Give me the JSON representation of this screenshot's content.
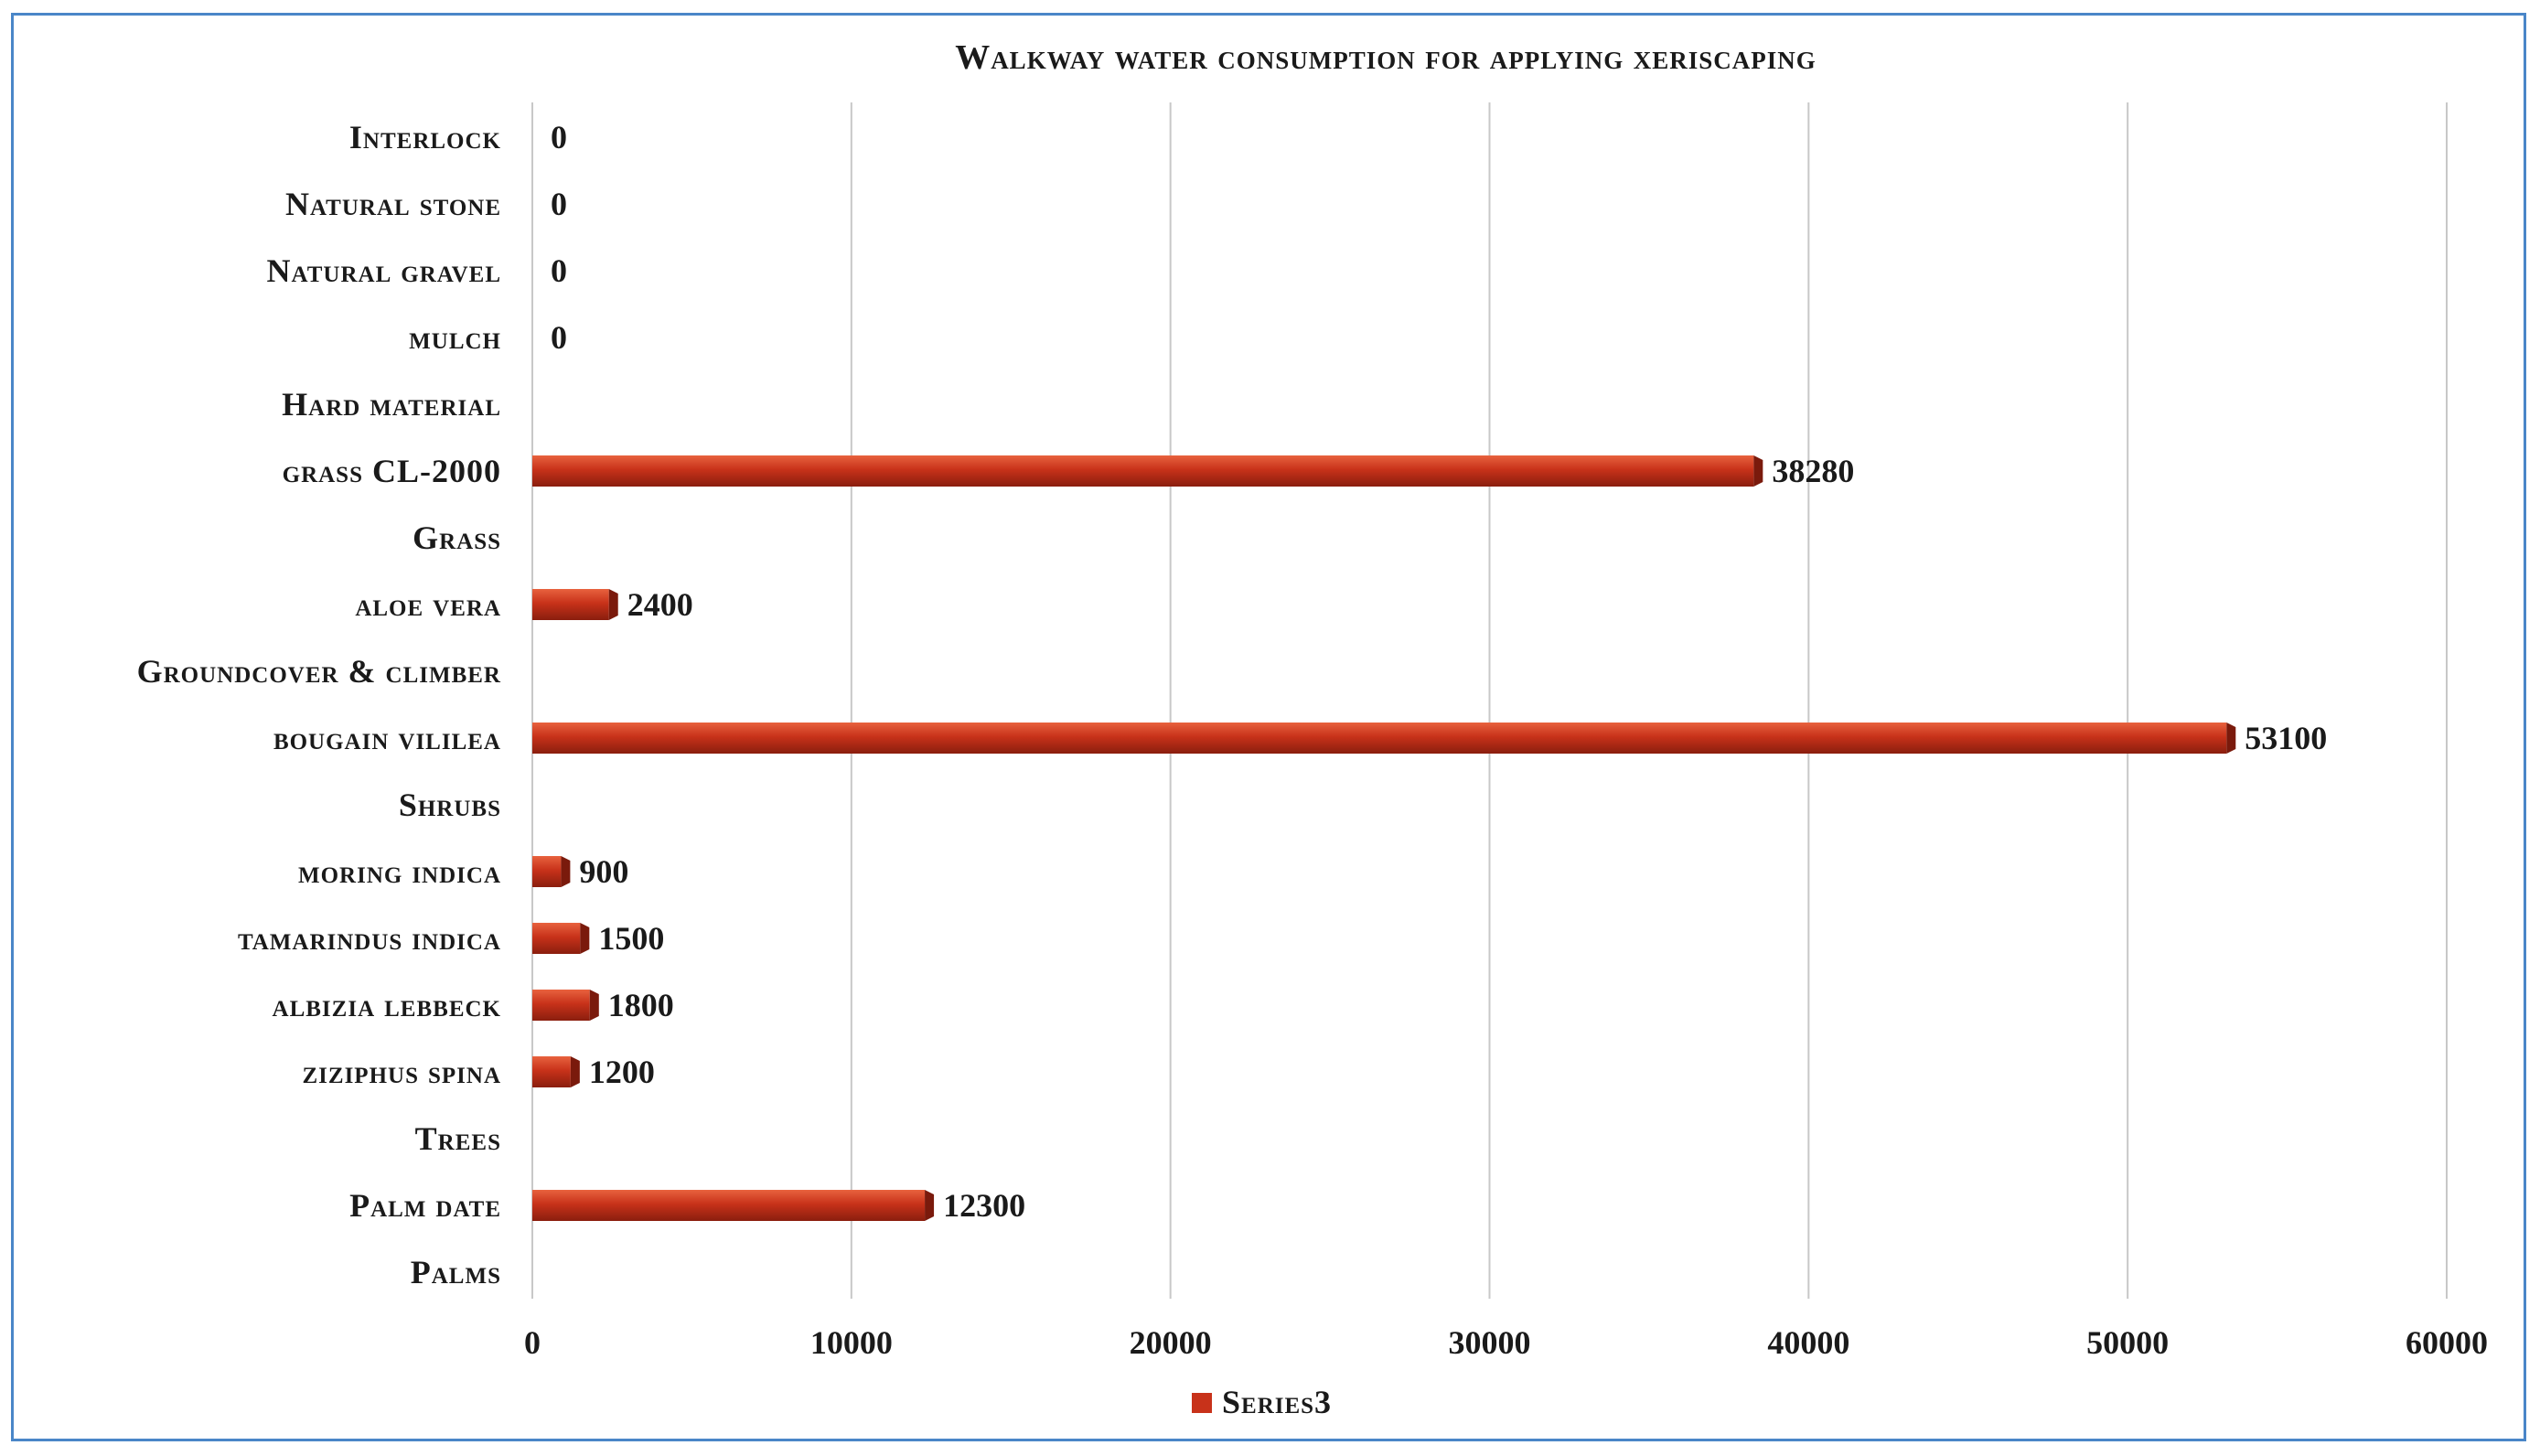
{
  "chart_data": {
    "type": "bar",
    "orientation": "horizontal",
    "title": "Walkway water consumption for applying xeriscaping",
    "categories": [
      "Interlock",
      "Natural stone",
      "Natural gravel",
      "mulch",
      "Hard material",
      "grass CL-2000",
      "Grass",
      "aloe vera",
      "Groundcover & climber",
      "bougain vililea",
      "Shrubs",
      "moring indica",
      "tamarindus indica",
      "albizia lebbeck",
      "ziziphus spina",
      "Trees",
      "Palm date",
      "Palms"
    ],
    "values": [
      0,
      0,
      0,
      0,
      null,
      38280,
      null,
      2400,
      null,
      53100,
      null,
      900,
      1500,
      1800,
      1200,
      null,
      12300,
      null
    ],
    "series": [
      {
        "name": "Series3",
        "color": "#c8321a"
      }
    ],
    "xlim": [
      0,
      60000
    ],
    "xticks": [
      0,
      10000,
      20000,
      30000,
      40000,
      50000,
      60000
    ],
    "xlabel": "",
    "ylabel": "",
    "grid": "vertical",
    "legend": "bottom-center",
    "data_labels": true
  },
  "colors": {
    "bar": "#c8321a",
    "bar_dark": "#7a1a0c",
    "bar_light": "#e8623e",
    "frame": "#4a86c8",
    "grid": "#c8c8c8",
    "text": "#1a1a1a"
  }
}
